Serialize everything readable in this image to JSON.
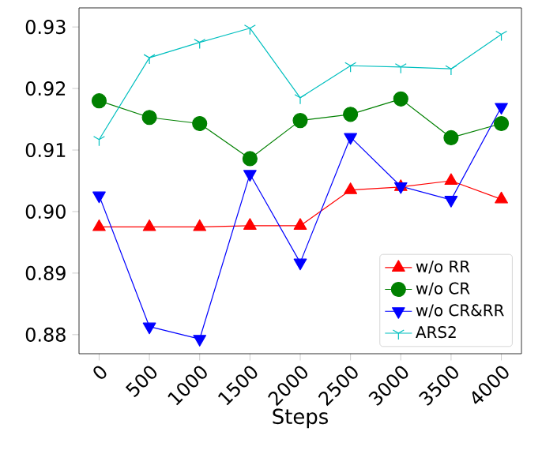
{
  "chart_data": {
    "type": "line",
    "xlabel": "Steps",
    "x": [
      0,
      500,
      1000,
      1500,
      2000,
      2500,
      3000,
      3500,
      4000
    ],
    "xlim": [
      -200,
      4200
    ],
    "xticks": [
      0,
      500,
      1000,
      1500,
      2000,
      2500,
      3000,
      3500,
      4000
    ],
    "ylim": [
      0.8769,
      0.9331
    ],
    "yticks": [
      0.88,
      0.89,
      {
        "value": 0.9,
        "label": "0.90"
      },
      0.91,
      0.92,
      0.93
    ],
    "legend": "bottom right",
    "grid": false,
    "series": [
      {
        "name": "w/o RR",
        "color": "#ff0000",
        "marker": "triangle",
        "values": [
          0.8975,
          0.8975,
          0.8975,
          0.8977,
          0.8977,
          0.9035,
          0.904,
          0.905,
          0.902
        ]
      },
      {
        "name": "w/o CR",
        "color": "#008000",
        "marker": "circle",
        "values": [
          0.918,
          0.9153,
          0.9143,
          0.9086,
          0.9148,
          0.9158,
          0.9183,
          0.912,
          0.9143
        ]
      },
      {
        "name": "w/o CR&RR",
        "color": "#0000ff",
        "marker": "triangle_down",
        "values": [
          0.9026,
          0.8813,
          0.8793,
          0.9061,
          0.8917,
          0.9121,
          0.9041,
          0.9019,
          0.917
        ]
      },
      {
        "name": "ARS2",
        "color": "#00bfbf",
        "marker": "cross",
        "values": [
          0.9117,
          0.925,
          0.9275,
          0.9298,
          0.9185,
          0.9237,
          0.9235,
          0.9232,
          0.9288
        ]
      }
    ]
  }
}
